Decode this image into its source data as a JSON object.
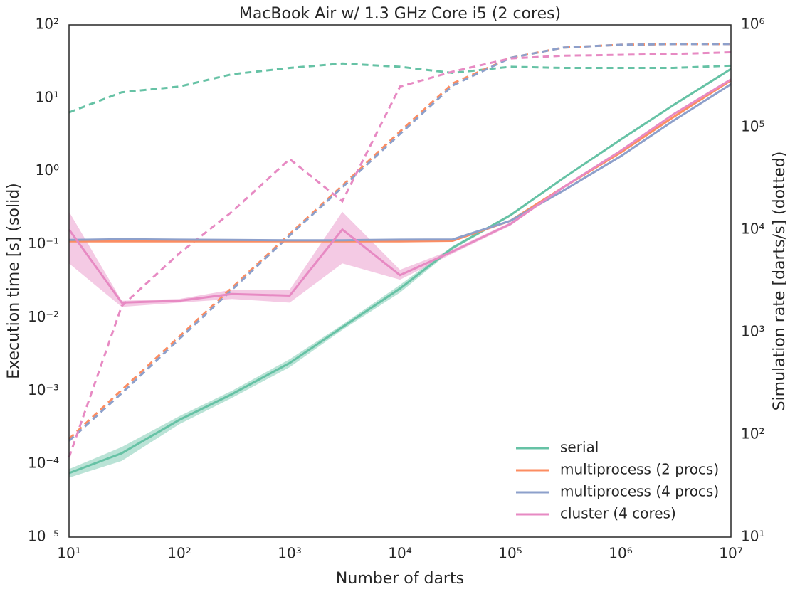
{
  "chart_data": {
    "type": "line",
    "title": "MacBook Air w/ 1.3 GHz Core i5 (2 cores)",
    "x_label": "Number of darts",
    "y_label": "Execution time [s] (solid)",
    "y2_label": "Simulation rate [darts/s] (dotted)",
    "log_x": true,
    "log_y": true,
    "log_y2": true,
    "legend": "lower right",
    "x": [
      10,
      30,
      100,
      300,
      1000,
      3000,
      10000,
      30000,
      100000,
      300000,
      1000000,
      3000000,
      10000000
    ],
    "xlim": [
      10,
      10000000
    ],
    "xticks": [
      {
        "value": 10,
        "label": "10¹"
      },
      {
        "value": 100,
        "label": "10²"
      },
      {
        "value": 1000,
        "label": "10³"
      },
      {
        "value": 10000,
        "label": "10⁴"
      },
      {
        "value": 100000,
        "label": "10⁵"
      },
      {
        "value": 1000000,
        "label": "10⁶"
      },
      {
        "value": 10000000,
        "label": "10⁷"
      }
    ],
    "ylim": [
      1e-05,
      100
    ],
    "yticks": [
      {
        "value": 1e-05,
        "label": "10⁻⁵"
      },
      {
        "value": 0.0001,
        "label": "10⁻⁴"
      },
      {
        "value": 0.001,
        "label": "10⁻³"
      },
      {
        "value": 0.01,
        "label": "10⁻²"
      },
      {
        "value": 0.1,
        "label": "10⁻¹"
      },
      {
        "value": 1,
        "label": "10⁰"
      },
      {
        "value": 10,
        "label": "10¹"
      },
      {
        "value": 100,
        "label": "10²"
      }
    ],
    "y2lim": [
      10,
      1000000
    ],
    "y2ticks": [
      {
        "value": 10,
        "label": "10¹"
      },
      {
        "value": 100,
        "label": "10²"
      },
      {
        "value": 1000,
        "label": "10³"
      },
      {
        "value": 10000,
        "label": "10⁴"
      },
      {
        "value": 100000,
        "label": "10⁵"
      },
      {
        "value": 1000000,
        "label": "10⁶"
      }
    ],
    "series": [
      {
        "name": "serial",
        "color": "#66c2a5",
        "values": [
          7.5e-05,
          0.00014,
          0.0004,
          0.0009,
          0.0024,
          0.0074,
          0.025,
          0.09,
          0.25,
          0.8,
          2.7,
          8,
          25
        ],
        "lower": [
          6.5e-05,
          0.00011,
          0.00035,
          0.0008,
          0.0021,
          0.0068,
          0.022,
          0.085,
          0.24,
          0.78,
          2.65,
          7.9,
          24.5
        ],
        "upper": [
          8.5e-05,
          0.00017,
          0.00045,
          0.001,
          0.0027,
          0.008,
          0.028,
          0.095,
          0.26,
          0.82,
          2.75,
          8.1,
          25.5
        ],
        "rate": [
          140000,
          220000,
          250000,
          330000,
          380000,
          420000,
          390000,
          340000,
          390000,
          380000,
          380000,
          380000,
          400000
        ]
      },
      {
        "name": "multiprocess (2 procs)",
        "color": "#fc8d62",
        "values": [
          0.11,
          0.11,
          0.11,
          0.11,
          0.11,
          0.11,
          0.11,
          0.112,
          0.21,
          0.6,
          1.8,
          5.5,
          17.5
        ],
        "rate": [
          91,
          273,
          909,
          2727,
          9090,
          27000,
          91000,
          268000,
          476000,
          600000,
          640000,
          650000,
          650000
        ]
      },
      {
        "name": "multiprocess (4 procs)",
        "color": "#8da0cb",
        "values": [
          0.115,
          0.118,
          0.116,
          0.115,
          0.114,
          0.114,
          0.116,
          0.117,
          0.21,
          0.54,
          1.6,
          4.9,
          15.5
        ],
        "rate": [
          87,
          254,
          860,
          2600,
          8800,
          26000,
          86000,
          256000,
          476000,
          600000,
          640000,
          650000,
          650000
        ]
      },
      {
        "name": "cluster (4 cores)",
        "color": "#e78ac3",
        "values": [
          0.16,
          0.016,
          0.017,
          0.021,
          0.02,
          0.16,
          0.038,
          0.08,
          0.19,
          0.6,
          1.9,
          6,
          18
        ],
        "lower": [
          0.055,
          0.014,
          0.016,
          0.018,
          0.016,
          0.055,
          0.033,
          0.075,
          0.18,
          0.58,
          1.85,
          5.9,
          17.5
        ],
        "upper": [
          0.28,
          0.017,
          0.018,
          0.024,
          0.024,
          0.28,
          0.045,
          0.085,
          0.2,
          0.62,
          1.95,
          6.1,
          18.5
        ],
        "rate": [
          60,
          1800,
          5900,
          15000,
          49000,
          19000,
          250000,
          350000,
          470000,
          500000,
          510000,
          520000,
          540000
        ]
      }
    ]
  }
}
